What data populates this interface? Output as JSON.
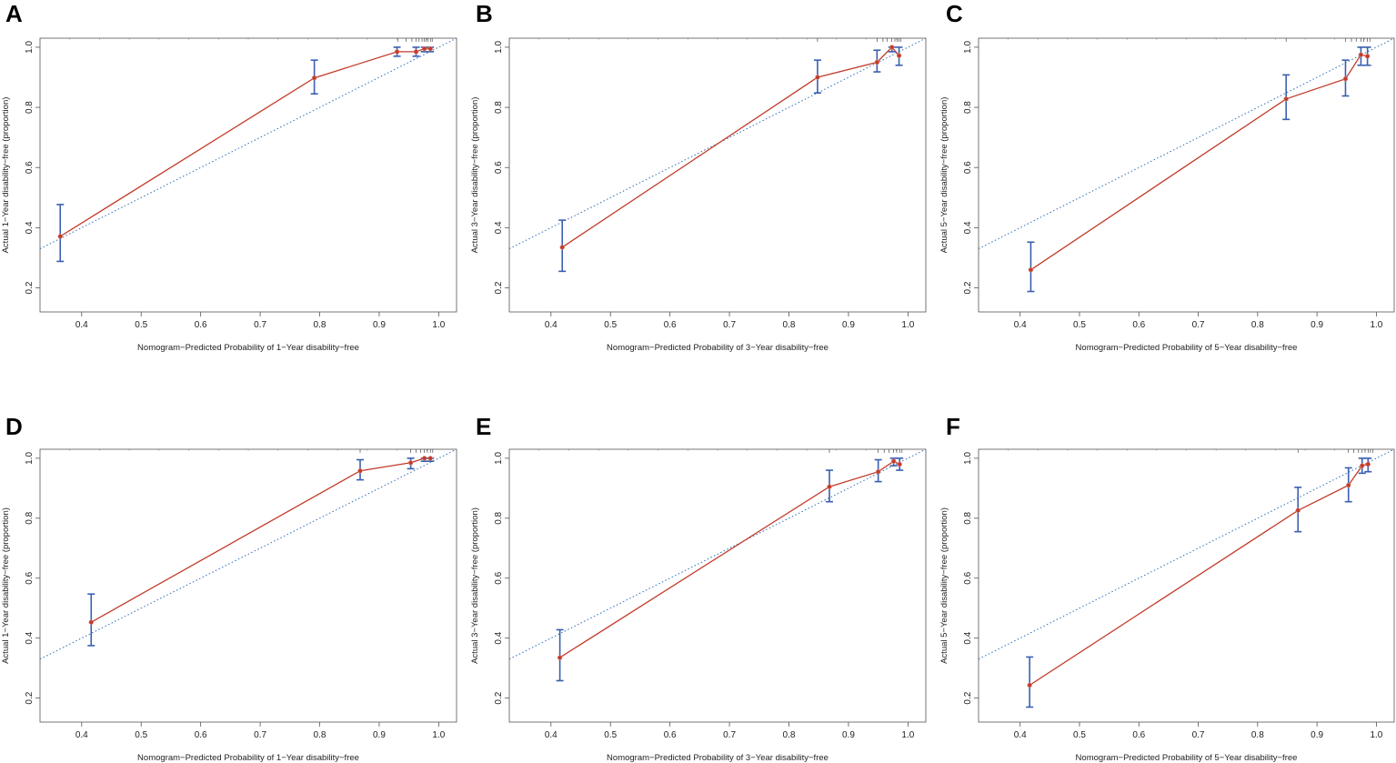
{
  "colors": {
    "curve": "#c23b2a",
    "ideal": "#2e6fb5",
    "errorbar": "#3a5fb0",
    "frame": "#555555"
  },
  "chart_data": [
    {
      "panel": "A",
      "type": "line",
      "title": "",
      "xlabel": "Nomogram−Predicted Probability of 1−Year disability−free",
      "ylabel": "Actual 1−Year disability−free (proportion)",
      "xlim": [
        0.33,
        1.03
      ],
      "ylim": [
        0.12,
        1.03
      ],
      "xticks": [
        "0.4",
        "0.5",
        "0.6",
        "0.7",
        "0.8",
        "0.9",
        "1.0"
      ],
      "yticks": [
        "0.2",
        "0.4",
        "0.6",
        "0.8",
        "1.0"
      ],
      "x": [
        0.364,
        0.791,
        0.93,
        0.962,
        0.976,
        0.986
      ],
      "y": [
        0.371,
        0.898,
        0.985,
        0.985,
        0.995,
        0.995
      ],
      "lower": [
        0.288,
        0.845,
        0.97,
        0.97,
        0.985,
        0.985
      ],
      "upper": [
        0.477,
        0.957,
        1.0,
        1.0,
        1.0,
        1.0
      ],
      "rug": [
        0.931,
        0.945,
        0.955,
        0.962,
        0.967,
        0.972,
        0.976,
        0.979,
        0.982,
        0.986,
        0.989
      ]
    },
    {
      "panel": "B",
      "type": "line",
      "title": "",
      "xlabel": "Nomogram−Predicted Probability of 3−Year disability−free",
      "ylabel": "Actual 3−Year disability−free (proportion)",
      "xlim": [
        0.33,
        1.03
      ],
      "ylim": [
        0.12,
        1.03
      ],
      "xticks": [
        "0.4",
        "0.5",
        "0.6",
        "0.7",
        "0.8",
        "0.9",
        "1.0"
      ],
      "yticks": [
        "0.2",
        "0.4",
        "0.6",
        "0.8",
        "1.0"
      ],
      "x": [
        0.419,
        0.848,
        0.948,
        0.973,
        0.985
      ],
      "y": [
        0.335,
        0.9,
        0.95,
        1.0,
        0.972
      ],
      "lower": [
        0.255,
        0.848,
        0.918,
        0.985,
        0.94
      ],
      "upper": [
        0.425,
        0.957,
        0.99,
        1.0,
        1.0
      ],
      "rug": [
        0.848,
        0.948,
        0.958,
        0.965,
        0.973,
        0.978,
        0.982,
        0.985,
        0.988
      ]
    },
    {
      "panel": "C",
      "type": "line",
      "title": "",
      "xlabel": "Nomogram−Predicted Probability of 5−Year disability−free",
      "ylabel": "Actual 5−Year disability−free (proportion)",
      "xlim": [
        0.33,
        1.03
      ],
      "ylim": [
        0.12,
        1.03
      ],
      "xticks": [
        "0.4",
        "0.5",
        "0.6",
        "0.7",
        "0.8",
        "0.9",
        "1.0"
      ],
      "yticks": [
        "0.2",
        "0.4",
        "0.6",
        "0.8",
        "1.0"
      ],
      "x": [
        0.418,
        0.848,
        0.948,
        0.974,
        0.985
      ],
      "y": [
        0.26,
        0.828,
        0.895,
        0.975,
        0.97
      ],
      "lower": [
        0.188,
        0.76,
        0.838,
        0.94,
        0.94
      ],
      "upper": [
        0.352,
        0.908,
        0.957,
        1.0,
        1.0
      ],
      "rug": [
        0.848,
        0.948,
        0.958,
        0.966,
        0.974,
        0.979,
        0.985,
        0.989
      ]
    },
    {
      "panel": "D",
      "type": "line",
      "title": "",
      "xlabel": "Nomogram−Predicted Probability of 1−Year disability−free",
      "ylabel": "Actual 1−Year disability−free (proportion)",
      "xlim": [
        0.33,
        1.03
      ],
      "ylim": [
        0.12,
        1.03
      ],
      "xticks": [
        "0.4",
        "0.5",
        "0.6",
        "0.7",
        "0.8",
        "0.9",
        "1.0"
      ],
      "yticks": [
        "0.2",
        "0.4",
        "0.6",
        "0.8",
        "1.0"
      ],
      "x": [
        0.416,
        0.868,
        0.953,
        0.976,
        0.986
      ],
      "y": [
        0.453,
        0.958,
        0.985,
        1.0,
        1.0
      ],
      "lower": [
        0.375,
        0.928,
        0.965,
        0.99,
        0.99
      ],
      "upper": [
        0.547,
        0.995,
        1.0,
        1.0,
        1.0
      ],
      "rug": [
        0.868,
        0.953,
        0.962,
        0.97,
        0.976,
        0.981,
        0.986,
        0.99
      ]
    },
    {
      "panel": "E",
      "type": "line",
      "title": "",
      "xlabel": "Nomogram−Predicted Probability of 3−Year disability−free",
      "ylabel": "Actual 3−Year disability−free (proportion)",
      "xlim": [
        0.33,
        1.03
      ],
      "ylim": [
        0.12,
        1.03
      ],
      "xticks": [
        "0.4",
        "0.5",
        "0.6",
        "0.7",
        "0.8",
        "0.9",
        "1.0"
      ],
      "yticks": [
        "0.2",
        "0.4",
        "0.6",
        "0.8",
        "1.0"
      ],
      "x": [
        0.415,
        0.868,
        0.95,
        0.976,
        0.986
      ],
      "y": [
        0.335,
        0.905,
        0.955,
        0.99,
        0.98
      ],
      "lower": [
        0.258,
        0.855,
        0.922,
        0.975,
        0.96
      ],
      "upper": [
        0.428,
        0.96,
        0.995,
        1.0,
        1.0
      ],
      "rug": [
        0.868,
        0.95,
        0.96,
        0.968,
        0.976,
        0.981,
        0.986,
        0.99
      ]
    },
    {
      "panel": "F",
      "type": "line",
      "title": "",
      "xlabel": "Nomogram−Predicted Probability of 5−Year disability−free",
      "ylabel": "Actual 5−Year disability−free (proportion)",
      "xlim": [
        0.33,
        1.03
      ],
      "ylim": [
        0.12,
        1.03
      ],
      "xticks": [
        "0.4",
        "0.5",
        "0.6",
        "0.7",
        "0.8",
        "0.9",
        "1.0"
      ],
      "yticks": [
        "0.2",
        "0.4",
        "0.6",
        "0.8",
        "1.0"
      ],
      "x": [
        0.416,
        0.868,
        0.953,
        0.976,
        0.986
      ],
      "y": [
        0.243,
        0.826,
        0.91,
        0.975,
        0.98
      ],
      "lower": [
        0.17,
        0.755,
        0.855,
        0.95,
        0.955
      ],
      "upper": [
        0.337,
        0.903,
        0.968,
        1.0,
        1.0
      ],
      "rug": [
        0.868,
        0.953,
        0.962,
        0.97,
        0.976,
        0.981,
        0.986,
        0.99,
        0.994
      ]
    }
  ]
}
